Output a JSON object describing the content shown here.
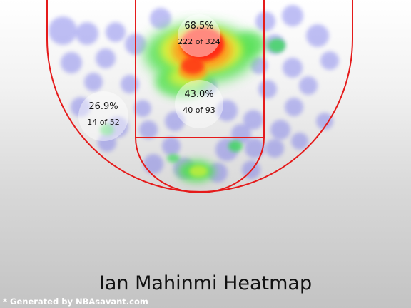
{
  "title": "Ian Mahinmi Heatmap",
  "credit": "* Generated by NBAsavant.com",
  "colors": {
    "court_line": "#e51b1b",
    "bubble": "#6b6bea",
    "zone_marker": "#ffffff"
  },
  "chart_data": {
    "type": "heatmap",
    "title": "Ian Mahinmi Heatmap",
    "zones": [
      {
        "zone": "restricted area",
        "pct": "68.5%",
        "made": 222,
        "attempts": 324
      },
      {
        "zone": "paint (non-RA)",
        "pct": "43.0%",
        "made": 40,
        "attempts": 93
      },
      {
        "zone": "left mid-range",
        "pct": "26.9%",
        "made": 14,
        "attempts": 52
      }
    ],
    "legend": "none",
    "grid": false
  }
}
